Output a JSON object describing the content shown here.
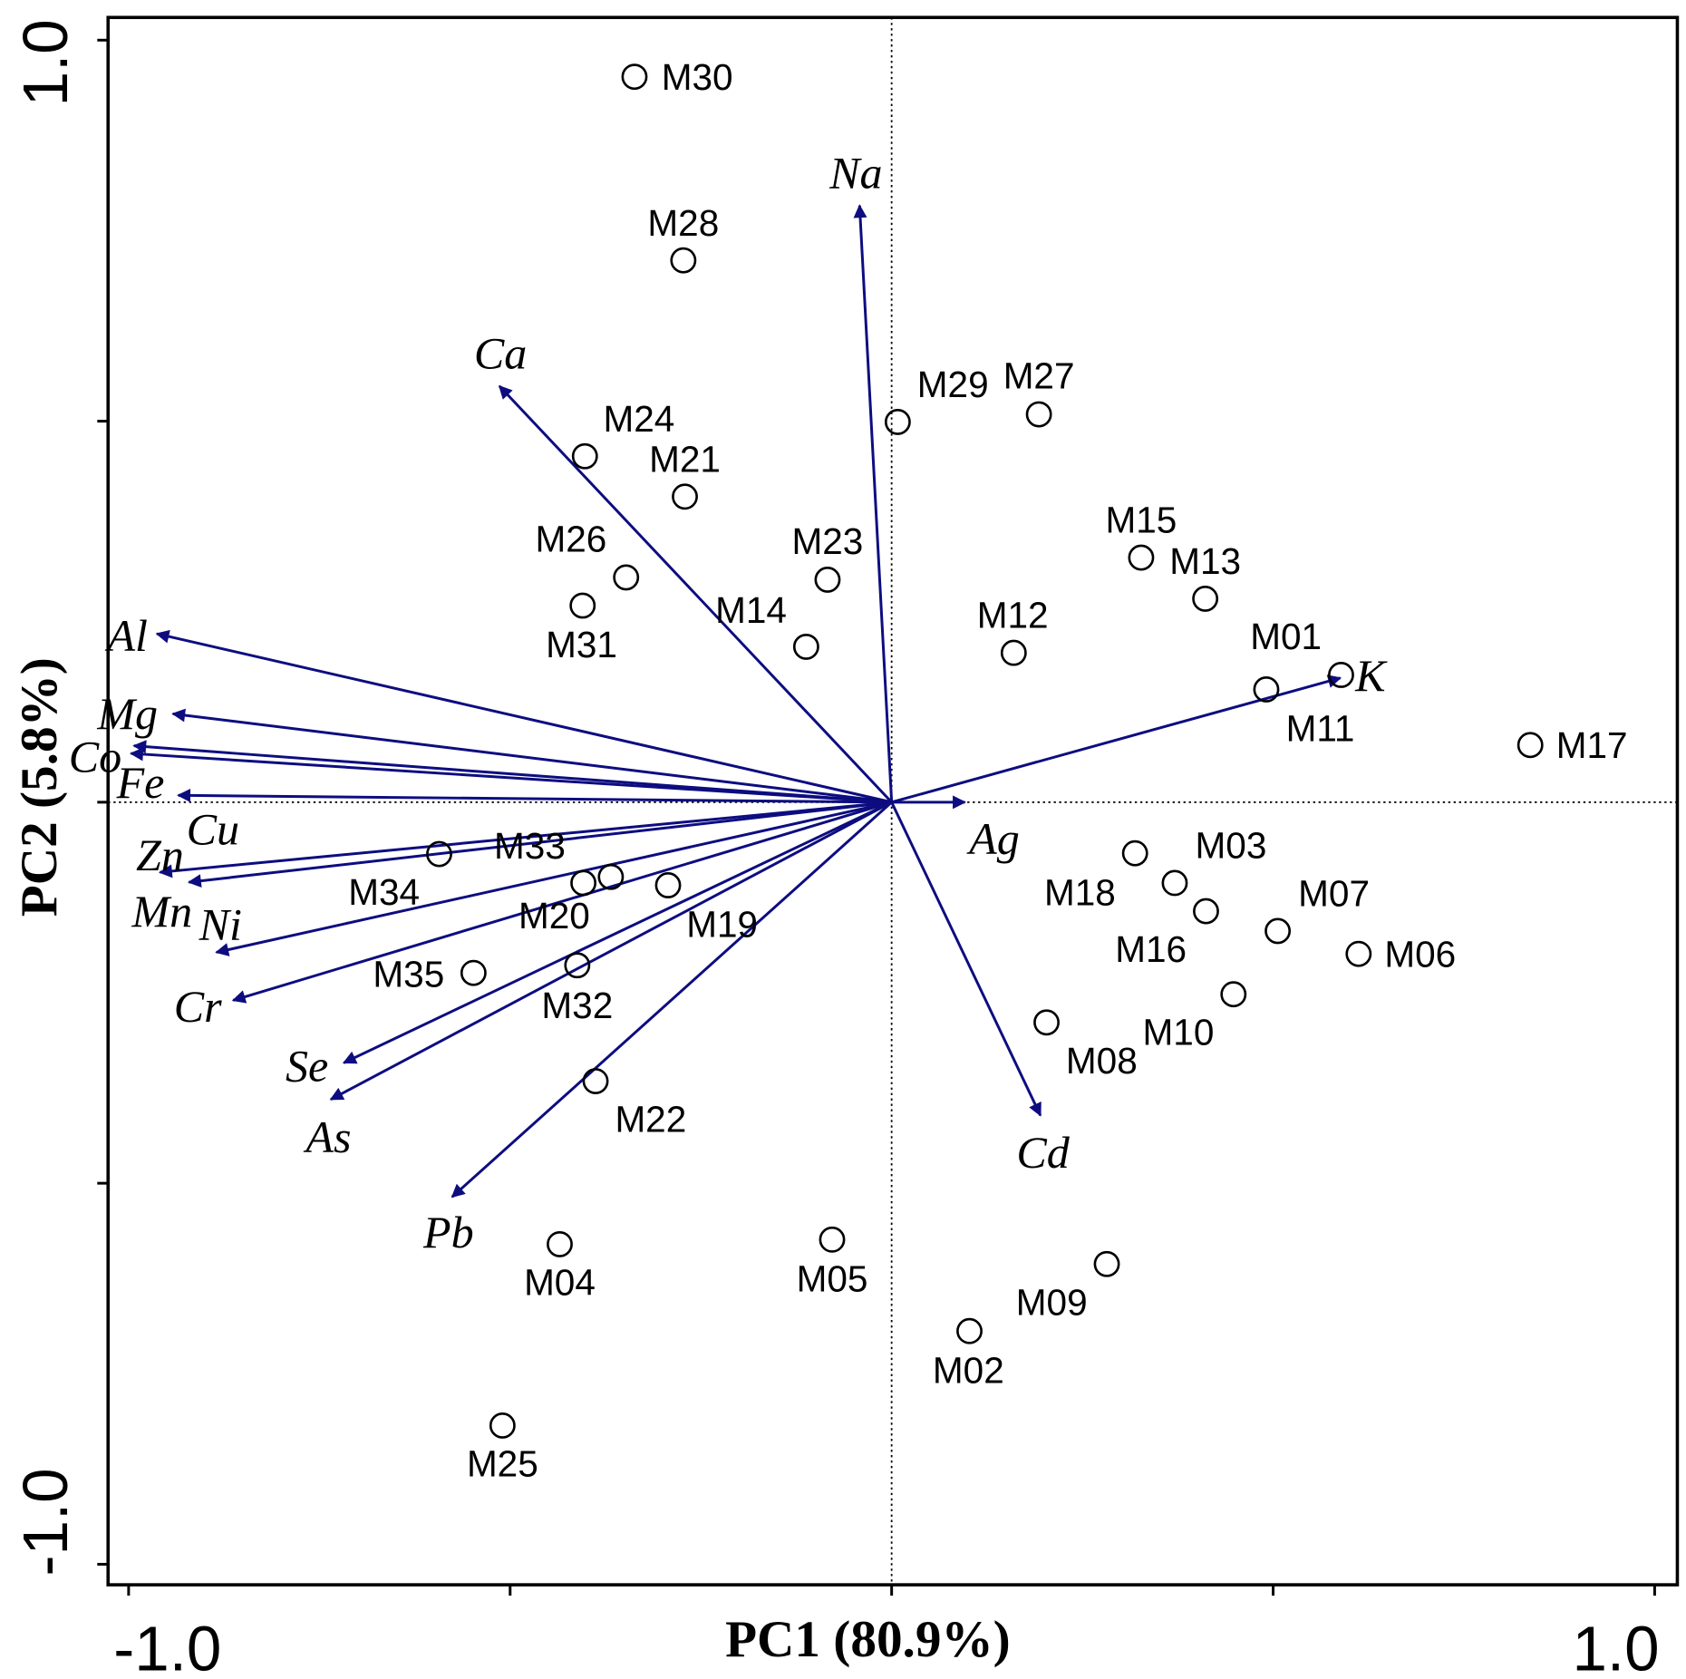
{
  "chart_data": {
    "type": "scatter",
    "subtype": "PCA biplot",
    "xlabel": "PC1 (80.9%)",
    "ylabel": "PC2 (5.8%)",
    "xlim": [
      -1.0,
      1.0
    ],
    "ylim": [
      -1.0,
      1.0
    ],
    "x_tick_labels": [
      "-1.0",
      "1.0"
    ],
    "y_tick_labels": [
      "1.0",
      "-1.0"
    ],
    "grid": false,
    "reference_lines": "dotted lines at x=0 and y=0",
    "arrow_color": "#0d0d80",
    "point_style": "open circle",
    "samples": [
      {
        "name": "M30",
        "x": -0.337,
        "y": 0.952
      },
      {
        "name": "M28",
        "x": -0.273,
        "y": 0.711
      },
      {
        "name": "M29",
        "x": 0.008,
        "y": 0.499
      },
      {
        "name": "M27",
        "x": 0.193,
        "y": 0.509
      },
      {
        "name": "M24",
        "x": -0.402,
        "y": 0.454
      },
      {
        "name": "M21",
        "x": -0.271,
        "y": 0.401
      },
      {
        "name": "M26",
        "x": -0.348,
        "y": 0.295
      },
      {
        "name": "M31",
        "x": -0.405,
        "y": 0.258
      },
      {
        "name": "M23",
        "x": -0.084,
        "y": 0.292
      },
      {
        "name": "M14",
        "x": -0.112,
        "y": 0.204
      },
      {
        "name": "M12",
        "x": 0.16,
        "y": 0.196
      },
      {
        "name": "M15",
        "x": 0.327,
        "y": 0.321
      },
      {
        "name": "M13",
        "x": 0.411,
        "y": 0.267
      },
      {
        "name": "M01",
        "x": 0.589,
        "y": 0.167
      },
      {
        "name": "M11",
        "x": 0.491,
        "y": 0.148
      },
      {
        "name": "M17",
        "x": 0.837,
        "y": 0.075
      },
      {
        "name": "M34",
        "x": -0.593,
        "y": -0.068
      },
      {
        "name": "M33",
        "x": -0.368,
        "y": -0.098
      },
      {
        "name": "M20",
        "x": -0.404,
        "y": -0.106
      },
      {
        "name": "M19",
        "x": -0.293,
        "y": -0.109
      },
      {
        "name": "M35",
        "x": -0.548,
        "y": -0.224
      },
      {
        "name": "M32",
        "x": -0.412,
        "y": -0.214
      },
      {
        "name": "M22",
        "x": -0.388,
        "y": -0.366
      },
      {
        "name": "M04",
        "x": -0.435,
        "y": -0.58
      },
      {
        "name": "M05",
        "x": -0.078,
        "y": -0.574
      },
      {
        "name": "M25",
        "x": -0.51,
        "y": -0.818
      },
      {
        "name": "M02",
        "x": 0.102,
        "y": -0.694
      },
      {
        "name": "M09",
        "x": 0.282,
        "y": -0.606
      },
      {
        "name": "M18",
        "x": 0.319,
        "y": -0.067
      },
      {
        "name": "M03",
        "x": 0.371,
        "y": -0.106
      },
      {
        "name": "M16",
        "x": 0.412,
        "y": -0.143
      },
      {
        "name": "M07",
        "x": 0.506,
        "y": -0.169
      },
      {
        "name": "M06",
        "x": 0.612,
        "y": -0.199
      },
      {
        "name": "M10",
        "x": 0.448,
        "y": -0.252
      },
      {
        "name": "M08",
        "x": 0.203,
        "y": -0.289
      }
    ],
    "variables": [
      {
        "name": "Na",
        "x": -0.042,
        "y": 0.783
      },
      {
        "name": "Ca",
        "x": -0.514,
        "y": 0.546
      },
      {
        "name": "Al",
        "x": -0.963,
        "y": 0.221
      },
      {
        "name": "Mg",
        "x": -0.942,
        "y": 0.116
      },
      {
        "name": "Co",
        "x": -0.993,
        "y": 0.074
      },
      {
        "name": "Cu",
        "x": -0.997,
        "y": 0.064
      },
      {
        "name": "Fe",
        "x": -0.935,
        "y": 0.009
      },
      {
        "name": "Zn",
        "x": -0.959,
        "y": -0.092
      },
      {
        "name": "Mn",
        "x": -0.921,
        "y": -0.105
      },
      {
        "name": "Ni",
        "x": -0.885,
        "y": -0.197
      },
      {
        "name": "Cr",
        "x": -0.863,
        "y": -0.26
      },
      {
        "name": "Se",
        "x": -0.718,
        "y": -0.342
      },
      {
        "name": "As",
        "x": -0.735,
        "y": -0.39
      },
      {
        "name": "Pb",
        "x": -0.576,
        "y": -0.518
      },
      {
        "name": "Cd",
        "x": 0.195,
        "y": -0.411
      },
      {
        "name": "K",
        "x": 0.588,
        "y": 0.163
      },
      {
        "name": "Ag",
        "x": 0.096,
        "y": 0.0
      }
    ]
  }
}
